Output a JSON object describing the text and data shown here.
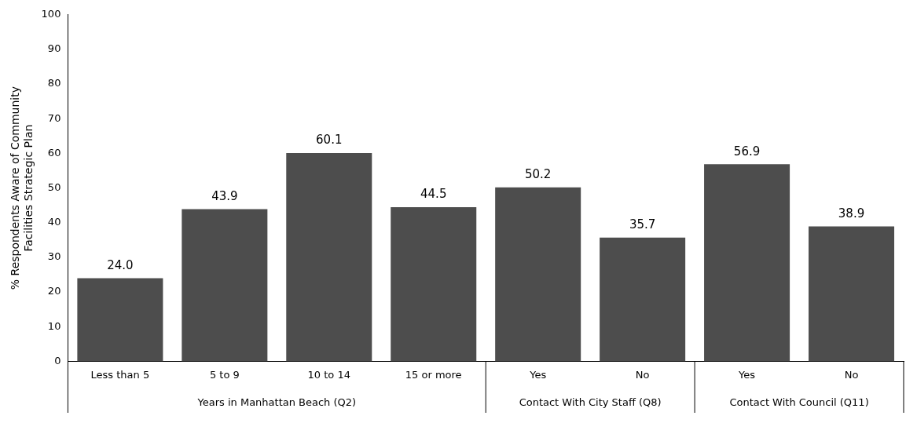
{
  "chart_data": {
    "type": "bar",
    "ylabel": "% Respondents Aware of Community Facilities Strategic Plan",
    "categories": [
      "Less than 5",
      "5 to 9",
      "10 to 14",
      "15 or more",
      "Yes",
      "No",
      "Yes",
      "No"
    ],
    "values": [
      24.0,
      43.9,
      60.1,
      44.5,
      50.2,
      35.7,
      56.9,
      38.9
    ],
    "value_labels": [
      "24.0",
      "43.9",
      "60.1",
      "44.5",
      "50.2",
      "35.7",
      "56.9",
      "38.9"
    ],
    "color": "#4d4d4d",
    "ylim": [
      0,
      100
    ],
    "yticks": [
      0,
      10,
      20,
      30,
      40,
      50,
      60,
      70,
      80,
      90,
      100
    ],
    "grid": false,
    "legend": false,
    "annotations": [
      "Years in Manhattan Beach (Q2)",
      "Contact With City Staff (Q8)",
      "Contact With Council (Q11)"
    ]
  }
}
